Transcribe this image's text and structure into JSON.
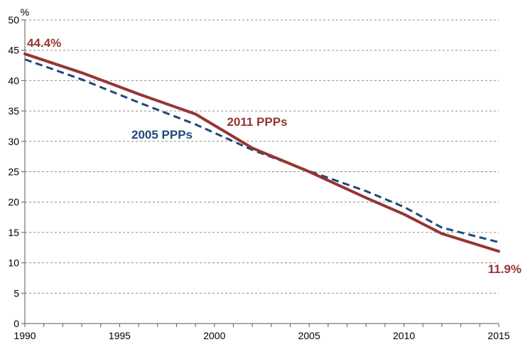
{
  "chart_data": {
    "type": "line",
    "ylabel": "%",
    "ylim": [
      0,
      50
    ],
    "yticks": [
      0,
      5,
      10,
      15,
      20,
      25,
      30,
      35,
      40,
      45,
      50
    ],
    "xlim": [
      1990,
      2015
    ],
    "xticks": [
      1990,
      1995,
      2000,
      2005,
      2010,
      2015
    ],
    "grid": "horizontal dashed",
    "series": [
      {
        "name": "2011 PPPs",
        "color": "#943634",
        "line_style": "solid",
        "x": [
          1990,
          1993,
          1996,
          1999,
          2002,
          2005,
          2008,
          2010,
          2012,
          2015
        ],
        "values": [
          44.4,
          41.3,
          37.8,
          34.5,
          28.9,
          25.0,
          20.7,
          18.0,
          14.8,
          11.9
        ]
      },
      {
        "name": "2005 PPPs",
        "color": "#1F497D",
        "line_style": "dashed",
        "x": [
          1990,
          1993,
          1996,
          1999,
          2002,
          2005,
          2008,
          2010,
          2012,
          2015
        ],
        "values": [
          43.5,
          40.2,
          36.4,
          32.8,
          28.6,
          25.1,
          21.8,
          19.2,
          15.8,
          13.4
        ]
      }
    ],
    "annotations": [
      {
        "text": "44.4%",
        "series": "2011 PPPs",
        "x": 1990,
        "y": 44.4
      },
      {
        "text": "11.9%",
        "series": "2011 PPPs",
        "x": 2015,
        "y": 11.9
      }
    ]
  }
}
